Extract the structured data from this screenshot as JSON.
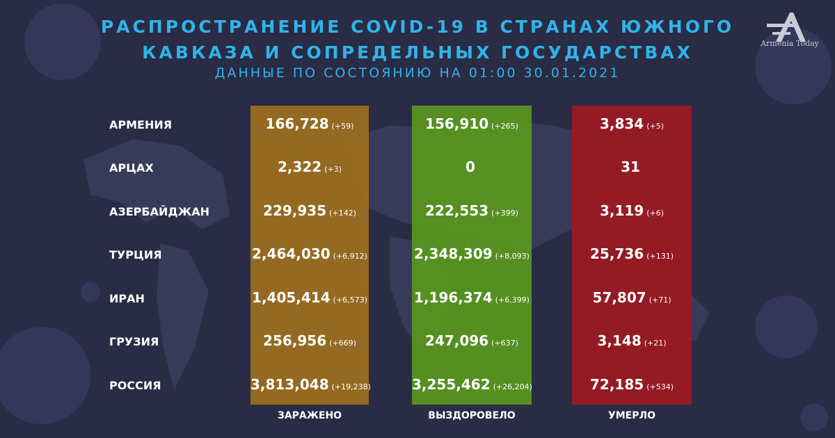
{
  "title": {
    "line1": "РАСПРОСТРАНЕНИЕ COVID-19 В СТРАНАХ ЮЖНОГО",
    "line2": "КАВКАЗА И СОПРЕДЕЛЬНЫХ ГОСУДАРСТВАХ",
    "line3": "ДАННЫЕ ПО СОСТОЯНИЮ НА 01:00  30.01.2021"
  },
  "logo": {
    "text": "Armenia Today"
  },
  "columns": {
    "infected": "ЗАРАЖЕНО",
    "recovered": "ВЫЗДОРОВЕЛО",
    "deaths": "УМЕРЛО"
  },
  "colors": {
    "background": "#2a2b45",
    "title": "#2fb4ea",
    "infected": "#9d7020",
    "recovered": "#589620",
    "deaths": "#9b1921"
  },
  "rows": [
    {
      "country": "АРМЕНИЯ",
      "infected": "166,728",
      "infected_delta": "(+59)",
      "recovered": "156,910",
      "recovered_delta": "(+265)",
      "deaths": "3,834",
      "deaths_delta": "(+5)"
    },
    {
      "country": "АРЦАХ",
      "infected": "2,322",
      "infected_delta": "(+3)",
      "recovered": "0",
      "recovered_delta": "",
      "deaths": "31",
      "deaths_delta": ""
    },
    {
      "country": "АЗЕРБАЙДЖАН",
      "infected": "229,935",
      "infected_delta": "(+142)",
      "recovered": "222,553",
      "recovered_delta": "(+399)",
      "deaths": "3,119",
      "deaths_delta": "(+6)"
    },
    {
      "country": "ТУРЦИЯ",
      "infected": "2,464,030",
      "infected_delta": "(+6,912)",
      "recovered": "2,348,309",
      "recovered_delta": "(+8,093)",
      "deaths": "25,736",
      "deaths_delta": "(+131)"
    },
    {
      "country": "ИРАН",
      "infected": "1,405,414",
      "infected_delta": "(+6,573)",
      "recovered": "1,196,374",
      "recovered_delta": "(+6,399)",
      "deaths": "57,807",
      "deaths_delta": "(+71)"
    },
    {
      "country": "ГРУЗИЯ",
      "infected": "256,956",
      "infected_delta": "(+669)",
      "recovered": "247,096",
      "recovered_delta": "(+637)",
      "deaths": "3,148",
      "deaths_delta": "(+21)"
    },
    {
      "country": "РОССИЯ",
      "infected": "3,813,048",
      "infected_delta": "(+19,238)",
      "recovered": "3,255,462",
      "recovered_delta": "(+26,204)",
      "deaths": "72,185",
      "deaths_delta": "(+534)"
    }
  ]
}
